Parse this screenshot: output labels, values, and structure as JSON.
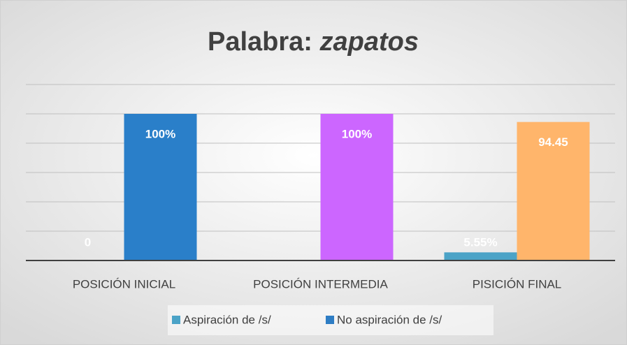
{
  "chart_data": {
    "type": "bar",
    "title": {
      "text": "Palabra:",
      "emphasis": "zapatos"
    },
    "categories": [
      "POSICIÓN INICIAL",
      "POSICIÓN INTERMEDIA",
      "PISICIÓN FINAL"
    ],
    "series": [
      {
        "name": "Aspiración de /s/",
        "color": "#4ba3c7",
        "values": [
          0,
          0,
          5.55
        ],
        "value_labels": [
          "0",
          null,
          "5.55%"
        ]
      },
      {
        "name": "No aspiración de /s/",
        "color": "#2e7dc4",
        "colors": [
          "#2a7fc9",
          "#cc66ff",
          "#ffb56b"
        ],
        "values": [
          100,
          100,
          94.45
        ],
        "value_labels": [
          "100%",
          "100%",
          "94.45"
        ]
      }
    ],
    "ylim": [
      0,
      120
    ],
    "yticks": [
      0,
      20,
      40,
      60,
      80,
      100,
      120
    ],
    "grid": true,
    "legend": "bottom"
  }
}
